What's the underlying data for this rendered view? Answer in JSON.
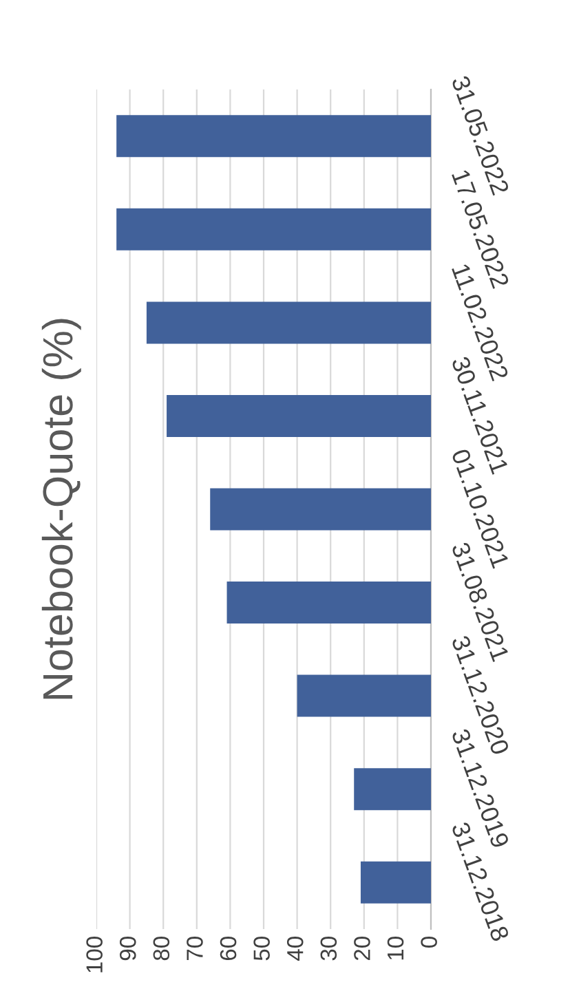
{
  "chart_data": {
    "type": "bar",
    "orientation": "horizontal",
    "ylabel": "Notebook-Quote (%)",
    "categories": [
      "31.05.2022",
      "17.05.2022",
      "11.02.2022",
      "30.11.2021",
      "01.10.2021",
      "31.08.2021",
      "31.12.2020",
      "31.12.2019",
      "31.12.2018"
    ],
    "series": [
      {
        "color": "#41619a",
        "values": [
          94,
          94,
          85,
          79,
          66,
          61,
          40,
          23,
          21
        ]
      }
    ],
    "xlim": [
      100,
      0
    ],
    "xticks": [
      100,
      90,
      80,
      70,
      60,
      50,
      40,
      30,
      20,
      10,
      0
    ],
    "grid": "x",
    "legend": false
  }
}
